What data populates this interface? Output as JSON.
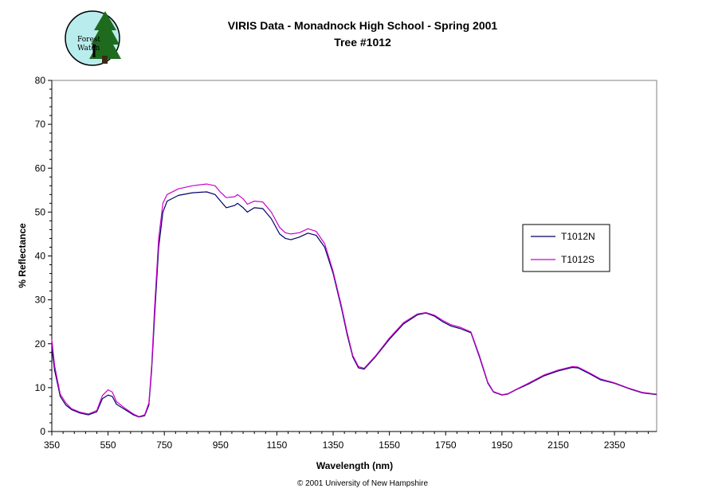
{
  "logo": {
    "text_line1": "Forest",
    "text_line2": "Watch"
  },
  "footer": "© 2001 University of New Hampshire",
  "chart_data": {
    "type": "line",
    "title": "VIRIS Data -  Monadnock High School - Spring 2001",
    "subtitle": "Tree #1012",
    "xlabel": "Wavelength (nm)",
    "ylabel": "% Reflectance",
    "xlim": [
      350,
      2500
    ],
    "ylim": [
      0,
      80
    ],
    "xticks": [
      350,
      550,
      750,
      950,
      1150,
      1350,
      1550,
      1750,
      1950,
      2150,
      2350
    ],
    "yticks": [
      0,
      10,
      20,
      30,
      40,
      50,
      60,
      70,
      80
    ],
    "grid": false,
    "legend_position": "right",
    "series": [
      {
        "name": "T1012N",
        "color": "#000066",
        "points": [
          [
            350,
            19
          ],
          [
            360,
            14
          ],
          [
            380,
            8
          ],
          [
            400,
            6
          ],
          [
            420,
            5
          ],
          [
            450,
            4.2
          ],
          [
            480,
            3.8
          ],
          [
            510,
            4.5
          ],
          [
            530,
            7.5
          ],
          [
            550,
            8.3
          ],
          [
            565,
            8
          ],
          [
            580,
            6.2
          ],
          [
            610,
            5
          ],
          [
            640,
            3.8
          ],
          [
            660,
            3.3
          ],
          [
            680,
            3.6
          ],
          [
            695,
            6
          ],
          [
            705,
            14
          ],
          [
            715,
            26
          ],
          [
            730,
            42
          ],
          [
            745,
            50
          ],
          [
            760,
            52.5
          ],
          [
            800,
            53.8
          ],
          [
            850,
            54.4
          ],
          [
            900,
            54.6
          ],
          [
            930,
            54
          ],
          [
            950,
            52.5
          ],
          [
            970,
            51
          ],
          [
            1000,
            51.5
          ],
          [
            1010,
            52
          ],
          [
            1030,
            51
          ],
          [
            1045,
            50
          ],
          [
            1070,
            51
          ],
          [
            1100,
            50.8
          ],
          [
            1130,
            48.5
          ],
          [
            1160,
            45
          ],
          [
            1180,
            44
          ],
          [
            1200,
            43.7
          ],
          [
            1230,
            44.3
          ],
          [
            1260,
            45.2
          ],
          [
            1290,
            44.7
          ],
          [
            1320,
            42
          ],
          [
            1350,
            36
          ],
          [
            1380,
            28
          ],
          [
            1400,
            22
          ],
          [
            1420,
            17
          ],
          [
            1440,
            14.5
          ],
          [
            1460,
            14.2
          ],
          [
            1500,
            17
          ],
          [
            1550,
            21
          ],
          [
            1600,
            24.5
          ],
          [
            1650,
            26.6
          ],
          [
            1680,
            27
          ],
          [
            1710,
            26.3
          ],
          [
            1740,
            25
          ],
          [
            1770,
            24
          ],
          [
            1800,
            23.5
          ],
          [
            1840,
            22.5
          ],
          [
            1870,
            17
          ],
          [
            1900,
            11
          ],
          [
            1920,
            9
          ],
          [
            1950,
            8.3
          ],
          [
            1970,
            8.5
          ],
          [
            2000,
            9.5
          ],
          [
            2050,
            11
          ],
          [
            2100,
            12.7
          ],
          [
            2150,
            13.8
          ],
          [
            2200,
            14.6
          ],
          [
            2220,
            14.5
          ],
          [
            2260,
            13.2
          ],
          [
            2300,
            11.8
          ],
          [
            2350,
            11
          ],
          [
            2400,
            9.8
          ],
          [
            2450,
            8.8
          ],
          [
            2500,
            8.4
          ]
        ]
      },
      {
        "name": "T1012S",
        "color": "#cc00cc",
        "points": [
          [
            350,
            21
          ],
          [
            360,
            15
          ],
          [
            380,
            8.5
          ],
          [
            400,
            6.5
          ],
          [
            420,
            5.2
          ],
          [
            450,
            4.4
          ],
          [
            480,
            4
          ],
          [
            510,
            4.8
          ],
          [
            530,
            8.2
          ],
          [
            550,
            9.5
          ],
          [
            565,
            9
          ],
          [
            580,
            6.8
          ],
          [
            610,
            5.3
          ],
          [
            640,
            4
          ],
          [
            660,
            3.4
          ],
          [
            680,
            3.8
          ],
          [
            695,
            6.5
          ],
          [
            705,
            15
          ],
          [
            715,
            28
          ],
          [
            730,
            44
          ],
          [
            745,
            52
          ],
          [
            760,
            54
          ],
          [
            800,
            55.3
          ],
          [
            850,
            56
          ],
          [
            900,
            56.4
          ],
          [
            930,
            56
          ],
          [
            950,
            54.5
          ],
          [
            970,
            53.3
          ],
          [
            1000,
            53.5
          ],
          [
            1010,
            54
          ],
          [
            1030,
            53
          ],
          [
            1045,
            51.8
          ],
          [
            1070,
            52.5
          ],
          [
            1100,
            52.3
          ],
          [
            1130,
            50
          ],
          [
            1160,
            46.5
          ],
          [
            1180,
            45.3
          ],
          [
            1200,
            45
          ],
          [
            1230,
            45.3
          ],
          [
            1260,
            46.2
          ],
          [
            1290,
            45.6
          ],
          [
            1320,
            42.8
          ],
          [
            1350,
            36.5
          ],
          [
            1380,
            28.5
          ],
          [
            1400,
            22.5
          ],
          [
            1420,
            17.3
          ],
          [
            1440,
            14.8
          ],
          [
            1460,
            14.4
          ],
          [
            1500,
            17.2
          ],
          [
            1550,
            21.3
          ],
          [
            1600,
            24.8
          ],
          [
            1650,
            26.8
          ],
          [
            1680,
            27.1
          ],
          [
            1710,
            26.5
          ],
          [
            1740,
            25.3
          ],
          [
            1770,
            24.3
          ],
          [
            1800,
            23.8
          ],
          [
            1840,
            22.7
          ],
          [
            1870,
            17.3
          ],
          [
            1900,
            11.2
          ],
          [
            1920,
            9.1
          ],
          [
            1950,
            8.4
          ],
          [
            1970,
            8.6
          ],
          [
            2000,
            9.6
          ],
          [
            2050,
            11.2
          ],
          [
            2100,
            12.9
          ],
          [
            2150,
            14
          ],
          [
            2200,
            14.8
          ],
          [
            2220,
            14.7
          ],
          [
            2260,
            13.4
          ],
          [
            2300,
            12
          ],
          [
            2350,
            11.1
          ],
          [
            2400,
            9.9
          ],
          [
            2450,
            8.9
          ],
          [
            2500,
            8.5
          ]
        ]
      }
    ]
  }
}
